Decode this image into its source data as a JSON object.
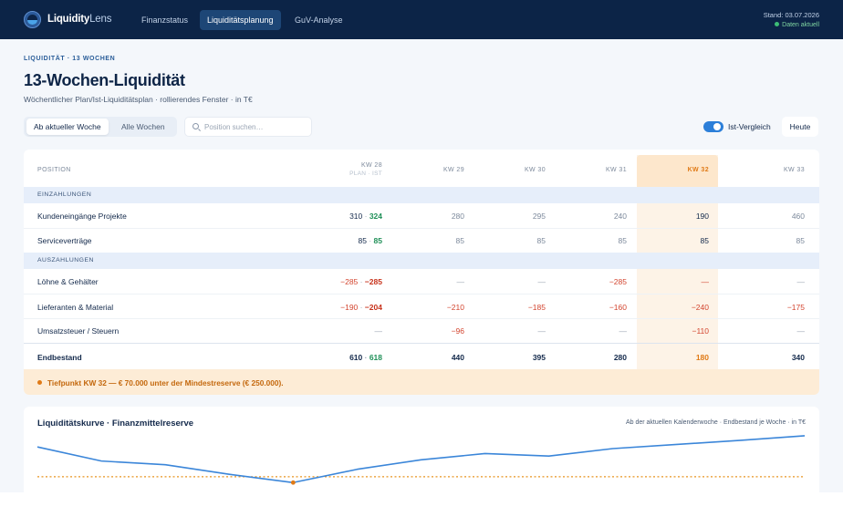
{
  "app": {
    "brand_bold": "Liquidity",
    "brand_light": "Lens"
  },
  "nav": [
    {
      "label": "Finanzstatus"
    },
    {
      "label": "Liquiditätsplanung"
    },
    {
      "label": "GuV-Analyse"
    }
  ],
  "status": {
    "stand": "Stand: 03.07.2026",
    "daten": "Daten aktuell"
  },
  "page": {
    "eyebrow": "LIQUIDITÄT · 13 WOCHEN",
    "title": "13-Wochen-Liquidität",
    "subtitle": "Wöchentlicher Plan/Ist-Liquiditätsplan · rollierendes Fenster · in T€"
  },
  "controls": {
    "seg_current": "Ab aktueller Woche",
    "seg_all": "Alle Wochen",
    "search_placeholder": "Position suchen…",
    "toggle_label": "Ist-Vergleich",
    "today": "Heute"
  },
  "table": {
    "position_header": "POSITION",
    "weeks": [
      "KW 28",
      "KW 29",
      "KW 30",
      "KW 31",
      "KW 32",
      "KW 33"
    ],
    "first_week_sub": "PLAN · IST",
    "current_week": "KW 32",
    "sections": {
      "in": "EINZAHLUNGEN",
      "out": "AUSZAHLUNGEN"
    },
    "rows": {
      "kunden": {
        "label": "Kundeneingänge Projekte",
        "plan": "310",
        "ist": "324",
        "w29": "280",
        "w30": "295",
        "w31": "240",
        "w32": "190",
        "w33": "460"
      },
      "service": {
        "label": "Serviceverträge",
        "plan": "85",
        "ist": "85",
        "w29": "85",
        "w30": "85",
        "w31": "85",
        "w32": "85",
        "w33": "85"
      },
      "loehne": {
        "label": "Löhne & Gehälter",
        "plan": "−285",
        "ist": "−285",
        "w29": "—",
        "w30": "—",
        "w31": "−285",
        "w32": "—",
        "w33": "—"
      },
      "lieferanten": {
        "label": "Lieferanten & Material",
        "plan": "−190",
        "ist": "−204",
        "w29": "−210",
        "w30": "−185",
        "w31": "−160",
        "w32": "−240",
        "w33": "−175"
      },
      "steuern": {
        "label": "Umsatzsteuer / Steuern",
        "w28": "—",
        "w29": "−96",
        "w30": "—",
        "w31": "—",
        "w32": "−110",
        "w33": "—"
      },
      "endbestand": {
        "label": "Endbestand",
        "plan": "610",
        "ist": "618",
        "w29": "440",
        "w30": "395",
        "w31": "280",
        "w32": "180",
        "w33": "340"
      }
    },
    "sep": " · ",
    "alert": "Tiefpunkt KW 32 — € 70.000 unter der Mindestreserve (€ 250.000)."
  },
  "chart": {
    "title": "Liquiditätskurve · Finanzmittelreserve",
    "note": "Ab der aktuellen Kalenderwoche · Endbestand je Woche · in T€"
  },
  "chart_data": {
    "type": "line",
    "series": [
      {
        "values": [
          610,
          440,
          395,
          280,
          180,
          340,
          455,
          530,
          500,
          590,
          640,
          690,
          745
        ]
      }
    ],
    "reserve": 250,
    "ylim": [
      150,
      700
    ],
    "colors": {
      "line": "#3b86d9",
      "reserve": "#e8941f",
      "marker": "#e07a16"
    }
  }
}
